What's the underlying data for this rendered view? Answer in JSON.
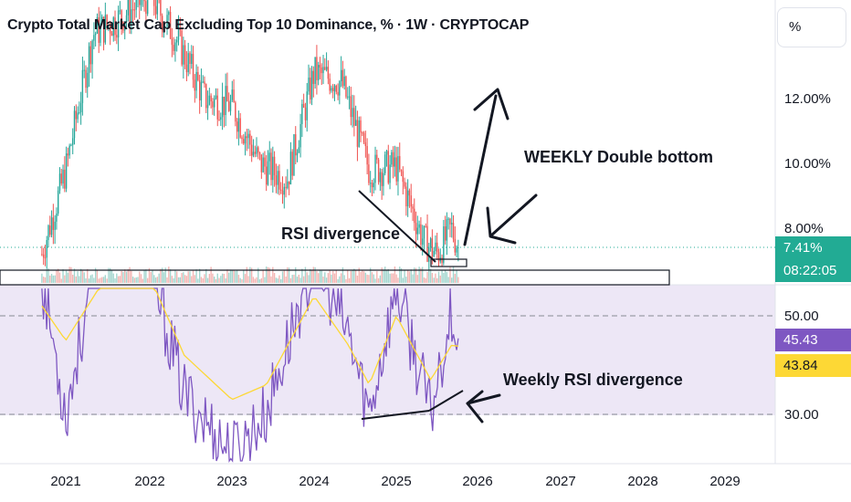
{
  "chart_title": "Crypto Total Market Cap Excluding Top 10 Dominance, % · 1W · CRYPTOCAP",
  "unit_button": "%",
  "price_axis_ticks": [
    "12.00%",
    "10.00%",
    "8.00%"
  ],
  "current_price": "7.41%",
  "countdown": "08:22:05",
  "rsi_axis_ticks": [
    "50.00",
    "30.00"
  ],
  "rsi_value": "45.43",
  "rsi_ma_value": "43.84",
  "year_labels": [
    "2021",
    "2022",
    "2023",
    "2024",
    "2025",
    "2026",
    "2027",
    "2028",
    "2029"
  ],
  "annotations": {
    "double_bottom": "WEEKLY Double bottom",
    "rsi_divergence": "RSI divergence",
    "weekly_rsi_divergence": "Weekly RSI divergence"
  },
  "colors": {
    "up": "#26a69a",
    "down": "#ef5350",
    "price_badge": "#22ab94",
    "rsi_line": "#7e57c2",
    "rsi_ma": "#fdd835",
    "rsi_band": "#ede7f6"
  },
  "chart_data": [
    {
      "type": "candlestick",
      "title": "Crypto Total Market Cap Excluding Top 10 Dominance, % · 1W · CRYPTOCAP",
      "x": [
        "2020-10",
        "2021-01",
        "2021-05",
        "2021-09",
        "2022-01",
        "2022-05",
        "2022-09",
        "2023-01",
        "2023-05",
        "2023-09",
        "2024-01",
        "2024-05",
        "2024-09",
        "2025-01",
        "2025-05",
        "2025-07",
        "2025-09",
        "2025-10"
      ],
      "approx_close": [
        7.2,
        9.8,
        14.0,
        14.5,
        15.2,
        13.8,
        12.0,
        11.8,
        10.0,
        9.5,
        12.8,
        12.5,
        9.8,
        9.9,
        7.6,
        7.2,
        8.0,
        7.41
      ],
      "ylabel": "%",
      "y_ticks": [
        8.0,
        10.0,
        12.0
      ],
      "last_value": 7.41
    },
    {
      "type": "line",
      "name": "RSI",
      "x": [
        "2020-10",
        "2021-01",
        "2021-06",
        "2022-01",
        "2022-06",
        "2023-01",
        "2023-06",
        "2024-01",
        "2024-06",
        "2024-09",
        "2025-01",
        "2025-06",
        "2025-09",
        "2025-10"
      ],
      "series": [
        {
          "values": [
            58,
            30,
            66,
            60,
            34,
            22,
            30,
            62,
            46,
            30,
            56,
            30,
            52,
            45.43
          ]
        },
        {
          "values": [
            52,
            45,
            56,
            58,
            42,
            33,
            36,
            54,
            44,
            36,
            50,
            37,
            44,
            43.84
          ]
        }
      ],
      "y_ticks": [
        30.0,
        50.0
      ],
      "last_values": [
        45.43,
        43.84
      ]
    }
  ]
}
